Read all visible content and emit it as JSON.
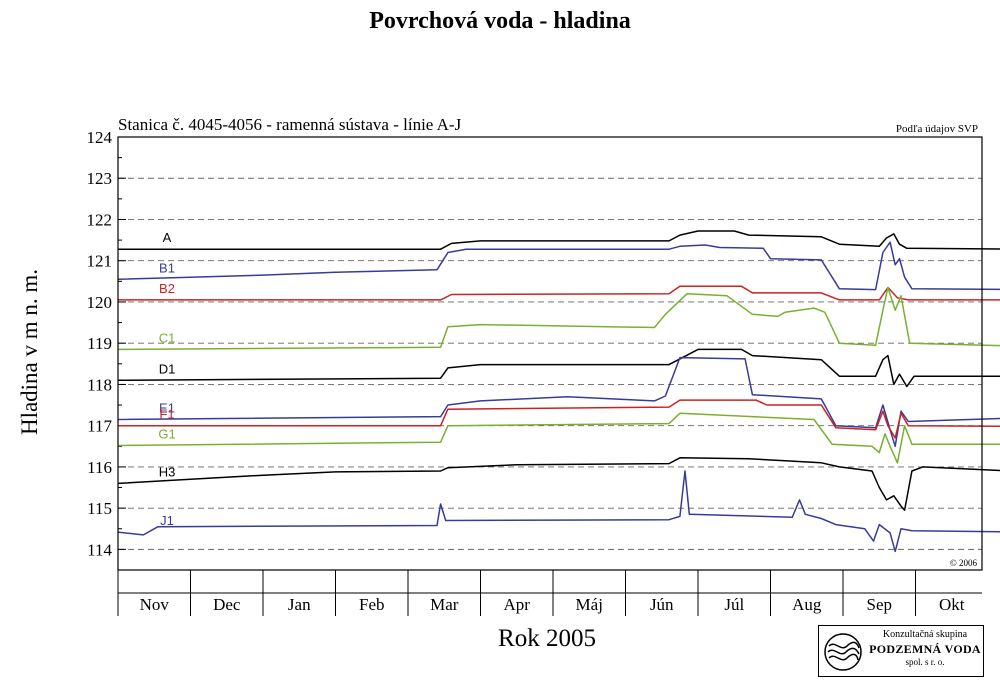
{
  "title": "Povrchová voda - hladina",
  "logo": {
    "line1": "Konzultačná skupina",
    "line2": "PODZEMNÁ VODA",
    "line3": "spol. s r. o."
  },
  "chart_data": {
    "type": "line",
    "subtitle": "Stanica č. 4045-4056 - ramenná sústava  - línie A-J",
    "source_note": "Podľa údajov SVP",
    "copyright": "© 2006",
    "xlabel": "Rok 2005",
    "ylabel": "Hladina v m n. m.",
    "ylim": [
      113.5,
      124
    ],
    "yticks": [
      114,
      115,
      116,
      117,
      118,
      119,
      120,
      121,
      122,
      123,
      124
    ],
    "grid": "dashed horizontal at each meter",
    "x_unit": "months from start of November 2004",
    "xlim": [
      0,
      12.6
    ],
    "months": [
      "Nov",
      "Dec",
      "Jan",
      "Feb",
      "Mar",
      "Apr",
      "Máj",
      "Jún",
      "Júl",
      "Aug",
      "Sep",
      "Okt"
    ],
    "series": [
      {
        "name": "A",
        "color": "#000000",
        "points": [
          [
            0,
            121.28
          ],
          [
            4.45,
            121.28
          ],
          [
            4.6,
            121.42
          ],
          [
            5.0,
            121.48
          ],
          [
            7.6,
            121.48
          ],
          [
            7.75,
            121.62
          ],
          [
            8.0,
            121.72
          ],
          [
            8.5,
            121.72
          ],
          [
            8.7,
            121.62
          ],
          [
            9.7,
            121.58
          ],
          [
            9.95,
            121.4
          ],
          [
            10.5,
            121.35
          ],
          [
            10.6,
            121.55
          ],
          [
            10.7,
            121.65
          ],
          [
            10.78,
            121.4
          ],
          [
            10.88,
            121.3
          ],
          [
            12.6,
            121.28
          ]
        ]
      },
      {
        "name": "B1",
        "color": "#3a3a9a",
        "points": [
          [
            0,
            120.55
          ],
          [
            1,
            120.6
          ],
          [
            2,
            120.65
          ],
          [
            3,
            120.72
          ],
          [
            4.4,
            120.78
          ],
          [
            4.55,
            121.2
          ],
          [
            4.8,
            121.28
          ],
          [
            7.6,
            121.28
          ],
          [
            7.75,
            121.35
          ],
          [
            8.1,
            121.38
          ],
          [
            8.2,
            121.35
          ],
          [
            8.3,
            121.32
          ],
          [
            8.9,
            121.3
          ],
          [
            9.0,
            121.05
          ],
          [
            9.7,
            121.02
          ],
          [
            9.95,
            120.32
          ],
          [
            10.45,
            120.3
          ],
          [
            10.55,
            121.2
          ],
          [
            10.65,
            121.45
          ],
          [
            10.72,
            120.9
          ],
          [
            10.78,
            121.05
          ],
          [
            10.85,
            120.6
          ],
          [
            10.95,
            120.32
          ],
          [
            12.6,
            120.3
          ]
        ]
      },
      {
        "name": "B2",
        "color": "#cc2222",
        "points": [
          [
            0,
            120.05
          ],
          [
            4.45,
            120.05
          ],
          [
            4.6,
            120.18
          ],
          [
            7.6,
            120.2
          ],
          [
            7.75,
            120.38
          ],
          [
            8.6,
            120.38
          ],
          [
            8.75,
            120.22
          ],
          [
            9.7,
            120.22
          ],
          [
            9.95,
            120.05
          ],
          [
            10.5,
            120.05
          ],
          [
            10.62,
            120.35
          ],
          [
            10.75,
            120.1
          ],
          [
            10.9,
            120.05
          ],
          [
            12.6,
            120.05
          ]
        ]
      },
      {
        "name": "C1",
        "color": "#7ab030",
        "points": [
          [
            0,
            118.85
          ],
          [
            4.45,
            118.9
          ],
          [
            4.55,
            119.4
          ],
          [
            5.0,
            119.45
          ],
          [
            7.4,
            119.38
          ],
          [
            7.55,
            119.7
          ],
          [
            7.85,
            120.2
          ],
          [
            8.4,
            120.15
          ],
          [
            8.75,
            119.7
          ],
          [
            9.1,
            119.65
          ],
          [
            9.2,
            119.75
          ],
          [
            9.6,
            119.85
          ],
          [
            9.75,
            119.75
          ],
          [
            9.95,
            119.0
          ],
          [
            10.45,
            118.95
          ],
          [
            10.55,
            119.8
          ],
          [
            10.62,
            120.35
          ],
          [
            10.72,
            119.8
          ],
          [
            10.8,
            120.15
          ],
          [
            10.92,
            119.0
          ],
          [
            12.6,
            118.92
          ]
        ]
      },
      {
        "name": "D1",
        "color": "#000000",
        "points": [
          [
            0,
            118.1
          ],
          [
            4.45,
            118.15
          ],
          [
            4.55,
            118.4
          ],
          [
            5.0,
            118.48
          ],
          [
            7.6,
            118.48
          ],
          [
            7.75,
            118.62
          ],
          [
            8.0,
            118.85
          ],
          [
            8.6,
            118.85
          ],
          [
            8.75,
            118.7
          ],
          [
            9.7,
            118.6
          ],
          [
            9.95,
            118.2
          ],
          [
            10.45,
            118.2
          ],
          [
            10.55,
            118.6
          ],
          [
            10.62,
            118.7
          ],
          [
            10.7,
            118.0
          ],
          [
            10.78,
            118.25
          ],
          [
            10.88,
            117.95
          ],
          [
            10.98,
            118.2
          ],
          [
            12.6,
            118.2
          ]
        ]
      },
      {
        "name": "E1",
        "color": "#3a3a9a",
        "points": [
          [
            0,
            117.15
          ],
          [
            4.45,
            117.22
          ],
          [
            4.55,
            117.5
          ],
          [
            5.0,
            117.6
          ],
          [
            6.2,
            117.7
          ],
          [
            7.4,
            117.6
          ],
          [
            7.55,
            117.72
          ],
          [
            7.75,
            118.65
          ],
          [
            8.65,
            118.62
          ],
          [
            8.75,
            117.75
          ],
          [
            9.7,
            117.65
          ],
          [
            9.9,
            117.0
          ],
          [
            10.45,
            116.95
          ],
          [
            10.55,
            117.5
          ],
          [
            10.65,
            116.9
          ],
          [
            10.72,
            116.5
          ],
          [
            10.8,
            117.35
          ],
          [
            10.9,
            117.1
          ],
          [
            12.6,
            117.2
          ]
        ]
      },
      {
        "name": "F1",
        "color": "#cc2222",
        "points": [
          [
            0,
            117.0
          ],
          [
            4.45,
            117.0
          ],
          [
            4.55,
            117.4
          ],
          [
            7.6,
            117.45
          ],
          [
            7.75,
            117.62
          ],
          [
            8.8,
            117.62
          ],
          [
            8.95,
            117.5
          ],
          [
            9.7,
            117.5
          ],
          [
            9.9,
            116.95
          ],
          [
            10.45,
            116.9
          ],
          [
            10.55,
            117.35
          ],
          [
            10.62,
            117.0
          ],
          [
            10.72,
            116.7
          ],
          [
            10.8,
            117.3
          ],
          [
            10.9,
            117.0
          ],
          [
            12.6,
            116.98
          ]
        ]
      },
      {
        "name": "G1",
        "color": "#7ab030",
        "points": [
          [
            0,
            116.52
          ],
          [
            4.45,
            116.6
          ],
          [
            4.55,
            117.0
          ],
          [
            7.6,
            117.05
          ],
          [
            7.75,
            117.3
          ],
          [
            9.6,
            117.15
          ],
          [
            9.85,
            116.55
          ],
          [
            10.4,
            116.5
          ],
          [
            10.5,
            116.35
          ],
          [
            10.58,
            116.8
          ],
          [
            10.65,
            116.5
          ],
          [
            10.75,
            116.1
          ],
          [
            10.85,
            117.0
          ],
          [
            10.95,
            116.55
          ],
          [
            12.6,
            116.55
          ]
        ]
      },
      {
        "name": "H3",
        "color": "#000000",
        "points": [
          [
            0,
            115.6
          ],
          [
            1,
            115.7
          ],
          [
            2,
            115.8
          ],
          [
            3,
            115.88
          ],
          [
            4.45,
            115.9
          ],
          [
            4.55,
            115.98
          ],
          [
            5.5,
            116.05
          ],
          [
            7.6,
            116.08
          ],
          [
            7.75,
            116.22
          ],
          [
            8.7,
            116.2
          ],
          [
            9.7,
            116.1
          ],
          [
            9.95,
            116.0
          ],
          [
            10.4,
            115.9
          ],
          [
            10.5,
            115.5
          ],
          [
            10.6,
            115.2
          ],
          [
            10.7,
            115.3
          ],
          [
            10.8,
            115.05
          ],
          [
            10.85,
            114.95
          ],
          [
            10.95,
            115.9
          ],
          [
            11.1,
            116.0
          ],
          [
            12.6,
            115.88
          ]
        ]
      },
      {
        "name": "J1",
        "color": "#3a3a9a",
        "points": [
          [
            0,
            114.42
          ],
          [
            0.35,
            114.35
          ],
          [
            0.55,
            114.55
          ],
          [
            4.4,
            114.58
          ],
          [
            4.45,
            115.1
          ],
          [
            4.52,
            114.7
          ],
          [
            7.6,
            114.72
          ],
          [
            7.75,
            114.8
          ],
          [
            7.82,
            115.9
          ],
          [
            7.88,
            114.85
          ],
          [
            9.3,
            114.78
          ],
          [
            9.4,
            115.2
          ],
          [
            9.48,
            114.85
          ],
          [
            9.7,
            114.75
          ],
          [
            9.9,
            114.6
          ],
          [
            10.3,
            114.5
          ],
          [
            10.42,
            114.2
          ],
          [
            10.5,
            114.6
          ],
          [
            10.65,
            114.4
          ],
          [
            10.72,
            113.95
          ],
          [
            10.8,
            114.5
          ],
          [
            10.95,
            114.45
          ],
          [
            12.6,
            114.42
          ]
        ]
      }
    ]
  }
}
